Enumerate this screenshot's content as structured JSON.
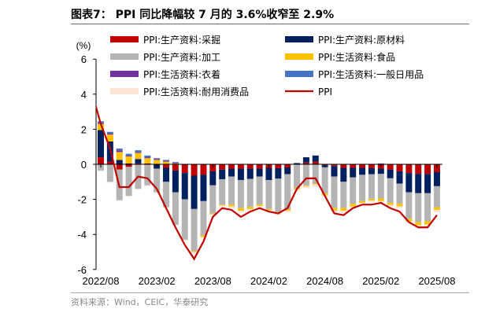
{
  "title": "图表7： PPI 同比降幅较 7 月的 3.6%收窄至 2.9%",
  "source": "资料来源：Wind，CEIC，华泰研究",
  "chart_data": {
    "type": "bar",
    "ylabel": "(%)",
    "ylim": [
      -6,
      6
    ],
    "yticks": [
      6,
      4,
      2,
      0,
      -2,
      -4,
      -6
    ],
    "categories": [
      "2022/08",
      "2022/09",
      "2022/10",
      "2022/11",
      "2022/12",
      "2023/01",
      "2023/02",
      "2023/03",
      "2023/04",
      "2023/05",
      "2023/06",
      "2023/07",
      "2023/08",
      "2023/09",
      "2023/10",
      "2023/11",
      "2023/12",
      "2024/01",
      "2024/02",
      "2024/03",
      "2024/04",
      "2024/05",
      "2024/06",
      "2024/07",
      "2024/08",
      "2024/09",
      "2024/10",
      "2024/11",
      "2024/12",
      "2025/01",
      "2025/02",
      "2025/03",
      "2025/04",
      "2025/05",
      "2025/06",
      "2025/07",
      "2025/08"
    ],
    "xticklabels": [
      "2022/08",
      "2023/02",
      "2023/08",
      "2024/02",
      "2024/08",
      "2025/02",
      "2025/08"
    ],
    "legend": "top",
    "series": [
      {
        "name": "PPI:生产资料:采掘",
        "color": "#c00000",
        "values": [
          0.4,
          0.15,
          -0.3,
          -0.15,
          0.05,
          0.05,
          0,
          -0.2,
          -0.35,
          -0.5,
          -0.65,
          -0.6,
          -0.4,
          -0.3,
          -0.25,
          -0.25,
          -0.25,
          -0.25,
          -0.2,
          -0.22,
          -0.18,
          0.02,
          0.1,
          0.15,
          -0.05,
          -0.1,
          -0.2,
          -0.2,
          -0.2,
          -0.22,
          -0.25,
          -0.3,
          -0.4,
          -0.5,
          -0.55,
          -0.55,
          -0.45
        ]
      },
      {
        "name": "PPI:生产资料:原材料",
        "color": "#002060",
        "values": [
          1.55,
          1.15,
          0.25,
          0.05,
          0.25,
          0,
          -0.25,
          -0.8,
          -1.25,
          -1.5,
          -1.9,
          -1.5,
          -0.8,
          -0.55,
          -0.45,
          -0.65,
          -0.58,
          -0.45,
          -0.7,
          -0.6,
          -0.38,
          0.05,
          0.3,
          0.35,
          -0.12,
          -0.6,
          -0.8,
          -0.55,
          -0.4,
          -0.35,
          -0.3,
          -0.5,
          -0.7,
          -1.1,
          -1.1,
          -1.1,
          -0.8
        ]
      },
      {
        "name": "PPI:生产资料:加工",
        "color": "#b4b4b4",
        "values": [
          -0.35,
          -1.0,
          -1.75,
          -1.65,
          -1.4,
          -1.2,
          -1.35,
          -1.45,
          -1.85,
          -2.3,
          -2.4,
          -1.95,
          -1.6,
          -1.45,
          -1.6,
          -1.6,
          -1.6,
          -1.6,
          -1.65,
          -1.9,
          -2.0,
          -1.35,
          -1.2,
          -1.1,
          -1.5,
          -1.8,
          -1.5,
          -1.5,
          -1.5,
          -1.4,
          -1.4,
          -1.4,
          -1.15,
          -1.5,
          -1.65,
          -1.6,
          -1.2
        ]
      },
      {
        "name": "PPI:生活资料:食品",
        "color": "#ffc000",
        "values": [
          0.35,
          0.4,
          0.45,
          0.4,
          0.35,
          0.3,
          0.25,
          0.15,
          0.05,
          0,
          -0.05,
          -0.1,
          -0.05,
          -0.05,
          -0.1,
          -0.15,
          -0.12,
          -0.08,
          -0.07,
          -0.07,
          -0.08,
          -0.08,
          -0.05,
          -0.05,
          -0.1,
          -0.15,
          -0.15,
          -0.15,
          -0.1,
          -0.1,
          -0.15,
          -0.12,
          -0.15,
          -0.15,
          -0.18,
          -0.18,
          -0.15
        ]
      },
      {
        "name": "PPI:生活资料:衣着",
        "color": "#7030a0",
        "values": [
          0.05,
          0.05,
          0.1,
          0.05,
          0.05,
          0.05,
          0.05,
          0.05,
          0.05,
          0,
          0,
          0,
          0,
          0,
          0,
          0,
          0,
          0,
          0,
          0,
          0,
          0,
          0,
          0,
          0,
          0,
          0,
          0,
          0,
          0,
          0,
          0,
          0,
          0,
          0,
          0,
          0
        ]
      },
      {
        "name": "PPI:生活资料:一般日用品",
        "color": "#4472c4",
        "values": [
          0.1,
          0.1,
          0.1,
          0.1,
          0.1,
          0.1,
          0.05,
          0.05,
          0.03,
          0.02,
          0.02,
          0.02,
          0.02,
          0.02,
          0,
          0,
          0,
          0,
          0,
          0,
          0,
          0,
          0,
          0,
          0,
          0,
          0,
          0,
          0,
          0,
          0.05,
          0,
          0,
          0,
          0,
          0,
          0
        ]
      },
      {
        "name": "PPI:生活资料:耐用消费品",
        "color": "#fbe5d6",
        "values": [
          -0.05,
          -0.05,
          -0.05,
          -0.05,
          -0.05,
          -0.05,
          -0.05,
          -0.05,
          -0.05,
          -0.05,
          -0.05,
          -0.05,
          -0.05,
          -0.1,
          -0.1,
          -0.1,
          -0.1,
          -0.1,
          -0.1,
          -0.1,
          -0.1,
          -0.1,
          -0.1,
          -0.15,
          -0.1,
          -0.1,
          -0.1,
          -0.1,
          -0.1,
          -0.1,
          -0.1,
          -0.1,
          -0.1,
          -0.1,
          -0.1,
          -0.1,
          -0.15
        ]
      }
    ],
    "line": {
      "name": "PPI",
      "color": "#c00000",
      "x": [
        "2022/07",
        "2022/08",
        "2022/09",
        "2022/10",
        "2022/11",
        "2022/12",
        "2023/01",
        "2023/02",
        "2023/03",
        "2023/04",
        "2023/05",
        "2023/06",
        "2023/07",
        "2023/08",
        "2023/09",
        "2023/10",
        "2023/11",
        "2023/12",
        "2024/01",
        "2024/02",
        "2024/03",
        "2024/04",
        "2024/05",
        "2024/06",
        "2024/07",
        "2024/08",
        "2024/09",
        "2024/10",
        "2024/11",
        "2024/12",
        "2025/01",
        "2025/02",
        "2025/03",
        "2025/04",
        "2025/05",
        "2025/06",
        "2025/07",
        "2025/08"
      ],
      "values": [
        4.2,
        2.3,
        0.9,
        -1.3,
        -1.3,
        -0.7,
        -0.8,
        -1.4,
        -2.5,
        -3.6,
        -4.6,
        -5.4,
        -4.4,
        -3.0,
        -2.5,
        -2.6,
        -3.0,
        -2.7,
        -2.5,
        -2.7,
        -2.8,
        -2.5,
        -1.4,
        -0.8,
        -0.8,
        -1.8,
        -2.8,
        -2.9,
        -2.5,
        -2.3,
        -2.3,
        -2.2,
        -2.5,
        -2.7,
        -3.3,
        -3.6,
        -3.6,
        -2.9
      ]
    }
  }
}
